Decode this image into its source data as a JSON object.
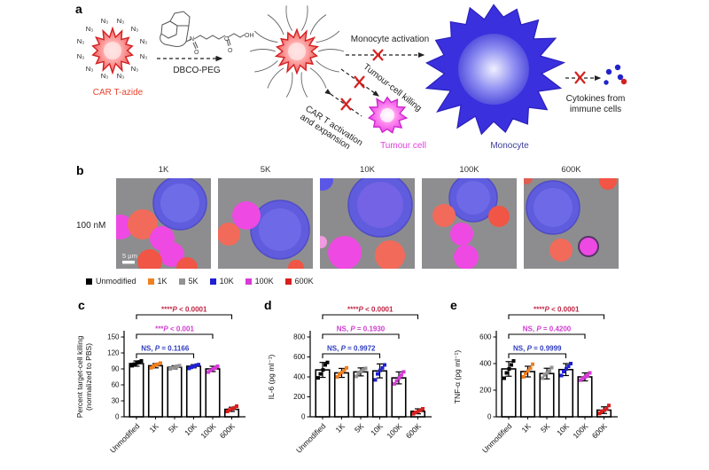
{
  "panel_a": {
    "label": "a",
    "n3": "N₃",
    "azide_cell_label": "CAR T-azide",
    "reaction_label": "DBCO-PEG",
    "chem": {
      "n": "N",
      "o": "O",
      "oh": "OH"
    },
    "arrow_monocyte": "Monocyte activation",
    "arrow_tumour": "Tumour-cell killing",
    "arrow_cart_line1": "CAR T activation",
    "arrow_cart_line2": "and expansion",
    "tumour_cell_label": "Tumour cell",
    "monocyte_label": "Monocyte",
    "cytokines_line1": "Cytokines from",
    "cytokines_line2": "immune cells"
  },
  "panel_b": {
    "label": "b",
    "row_label": "100 nM",
    "image_titles": [
      "1K",
      "5K",
      "10K",
      "100K",
      "600K"
    ],
    "scale_bar": "5 μm"
  },
  "legend": {
    "items": [
      {
        "label": "Unmodified",
        "color": "#000000"
      },
      {
        "label": "1K",
        "color": "#f07f1f"
      },
      {
        "label": "5K",
        "color": "#939393"
      },
      {
        "label": "10K",
        "color": "#1f1fd4"
      },
      {
        "label": "100K",
        "color": "#d73ad7"
      },
      {
        "label": "600K",
        "color": "#d91e1e"
      }
    ]
  },
  "panel_letters": {
    "c": "c",
    "d": "d",
    "e": "e"
  },
  "chart_data": [
    {
      "panel": "c",
      "type": "bar",
      "categories": [
        "Unmodified",
        "1K",
        "5K",
        "10K",
        "100K",
        "600K"
      ],
      "values": [
        100,
        96,
        93,
        95,
        90,
        14
      ],
      "errors": [
        5,
        4,
        3,
        3,
        5,
        4
      ],
      "points": [
        [
          96,
          99,
          101,
          103,
          105
        ],
        [
          92,
          95,
          97,
          99,
          101
        ],
        [
          90,
          92,
          93,
          95,
          96
        ],
        [
          91,
          93,
          95,
          97,
          98
        ],
        [
          84,
          87,
          90,
          92,
          95
        ],
        [
          10,
          13,
          15,
          17,
          20
        ]
      ],
      "ylabel_lines": [
        "Percent target-cell killing",
        "(normalized to PBS)"
      ],
      "yticks": [
        0,
        30,
        60,
        90,
        120,
        150
      ],
      "ylim": [
        0,
        150
      ],
      "bar_fill": "#ffffff",
      "bar_stroke": "#000000",
      "point_colors": [
        "#000000",
        "#f07f1f",
        "#939393",
        "#1f1fd4",
        "#d73ad7",
        "#d91e1e"
      ],
      "brackets": [
        {
          "from": 0,
          "to": 3,
          "label": "NS, P = 0.1166",
          "color": "#2f3dbf",
          "level": 0
        },
        {
          "from": 0,
          "to": 4,
          "label": "***P < 0.001",
          "color": "#cf3bcf",
          "level": 1
        },
        {
          "from": 0,
          "to": 5,
          "label": "****P < 0.0001",
          "color": "#bf2545",
          "level": 2
        }
      ]
    },
    {
      "panel": "d",
      "type": "bar",
      "categories": [
        "Unmodified",
        "1K",
        "5K",
        "10K",
        "100K",
        "600K"
      ],
      "values": [
        470,
        440,
        450,
        460,
        390,
        55
      ],
      "errors": [
        75,
        45,
        40,
        70,
        60,
        25
      ],
      "points": [
        [
          390,
          430,
          470,
          520,
          545
        ],
        [
          400,
          425,
          445,
          465,
          490
        ],
        [
          405,
          435,
          455,
          470,
          485
        ],
        [
          370,
          430,
          465,
          490,
          520
        ],
        [
          330,
          360,
          390,
          420,
          450
        ],
        [
          30,
          45,
          55,
          65,
          80
        ]
      ],
      "ylabel_lines": [
        "IL-6 (pg ml⁻¹)"
      ],
      "yticks": [
        0,
        200,
        400,
        600,
        800
      ],
      "ylim": [
        0,
        800
      ],
      "bar_fill": "#ffffff",
      "bar_stroke": "#000000",
      "point_colors": [
        "#000000",
        "#f07f1f",
        "#939393",
        "#1f1fd4",
        "#d73ad7",
        "#d91e1e"
      ],
      "brackets": [
        {
          "from": 0,
          "to": 3,
          "label": "NS, P = 0.9972",
          "color": "#2f3dbf",
          "level": 0
        },
        {
          "from": 0,
          "to": 4,
          "label": "NS, P = 0.1930",
          "color": "#cf3bcf",
          "level": 1
        },
        {
          "from": 0,
          "to": 5,
          "label": "****P < 0.0001",
          "color": "#bf2545",
          "level": 2
        }
      ]
    },
    {
      "panel": "e",
      "type": "bar",
      "categories": [
        "Unmodified",
        "1K",
        "5K",
        "10K",
        "100K",
        "600K"
      ],
      "values": [
        360,
        340,
        325,
        355,
        300,
        50
      ],
      "errors": [
        55,
        40,
        40,
        45,
        30,
        25
      ],
      "points": [
        [
          290,
          330,
          360,
          390,
          420
        ],
        [
          300,
          325,
          345,
          365,
          395
        ],
        [
          290,
          315,
          330,
          345,
          370
        ],
        [
          310,
          340,
          360,
          380,
          400
        ],
        [
          275,
          290,
          300,
          310,
          330
        ],
        [
          25,
          40,
          50,
          60,
          85
        ]
      ],
      "ylabel_lines": [
        "TNF-α (pg ml⁻¹)"
      ],
      "yticks": [
        0,
        200,
        400,
        600
      ],
      "ylim": [
        0,
        600
      ],
      "bar_fill": "#ffffff",
      "bar_stroke": "#000000",
      "point_colors": [
        "#000000",
        "#f07f1f",
        "#939393",
        "#1f1fd4",
        "#d73ad7",
        "#d91e1e"
      ],
      "brackets": [
        {
          "from": 0,
          "to": 3,
          "label": "NS, P = 0.9999",
          "color": "#2f3dbf",
          "level": 0
        },
        {
          "from": 0,
          "to": 4,
          "label": "NS, P = 0.4200",
          "color": "#cf3bcf",
          "level": 1
        },
        {
          "from": 0,
          "to": 5,
          "label": "****P < 0.0001",
          "color": "#bf2545",
          "level": 2
        }
      ]
    }
  ]
}
